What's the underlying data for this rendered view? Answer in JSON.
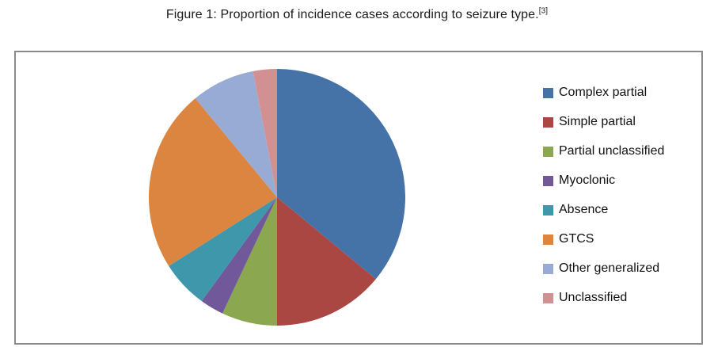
{
  "figure": {
    "title": "Figure 1: Proportion of incidence cases according to seizure type.",
    "title_superscript": "[3]"
  },
  "frame": {
    "border_color": "#8a8a8a",
    "background": "#ffffff"
  },
  "chart_data": {
    "type": "pie",
    "title": "Figure 1: Proportion of incidence cases according to seizure type.[3]",
    "legend_position": "right",
    "start_angle_deg": 0,
    "direction": "clockwise",
    "unit": "percent",
    "slices": [
      {
        "label": "Complex partial",
        "value_percent": 36,
        "color": "#4573A7"
      },
      {
        "label": "Simple partial",
        "value_percent": 14,
        "color": "#AA4743"
      },
      {
        "label": "Partial unclassified",
        "value_percent": 7,
        "color": "#8BA74F"
      },
      {
        "label": "Myoclonic",
        "value_percent": 3,
        "color": "#71589B"
      },
      {
        "label": "Absence",
        "value_percent": 6,
        "color": "#3E97AA"
      },
      {
        "label": "GTCS",
        "value_percent": 23,
        "color": "#DB8540"
      },
      {
        "label": "Other generalized",
        "value_percent": 8,
        "color": "#97ABD5"
      },
      {
        "label": "Unclassified",
        "value_percent": 3,
        "color": "#D29093"
      }
    ]
  }
}
